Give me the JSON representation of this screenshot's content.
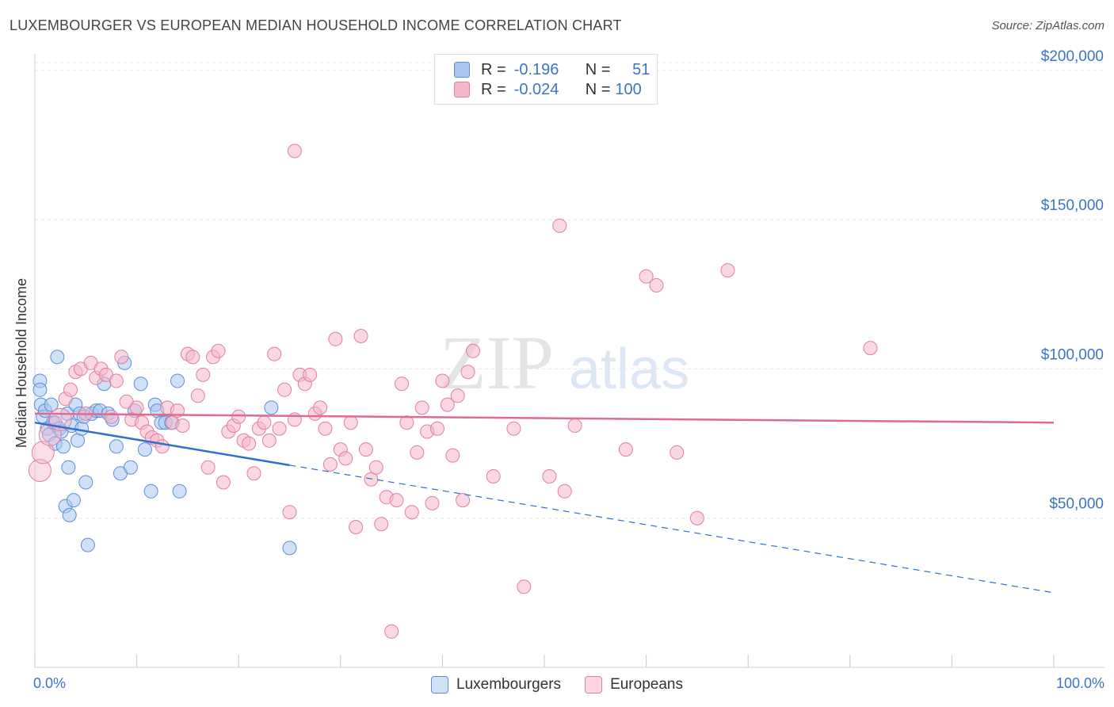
{
  "title": "LUXEMBOURGER VS EUROPEAN MEDIAN HOUSEHOLD INCOME CORRELATION CHART",
  "source": "Source: ZipAtlas.com",
  "watermark": {
    "zip": "ZIP",
    "atlas": "atlas"
  },
  "legend_top": {
    "rows": [
      {
        "r_label": "R =",
        "r_value": "-0.196",
        "n_label": "N =",
        "n_value": "51",
        "color": "#a9c6f0"
      },
      {
        "r_label": "R =",
        "r_value": "-0.024",
        "n_label": "N =",
        "n_value": "100",
        "color": "#f5b7cb"
      }
    ]
  },
  "x_axis": {
    "min_label": "0.0%",
    "max_label": "100.0%"
  },
  "chart_data": {
    "type": "scatter",
    "title": "LUXEMBOURGER VS EUROPEAN MEDIAN HOUSEHOLD INCOME CORRELATION CHART",
    "xlabel": "",
    "ylabel": "Median Household Income",
    "xlim": [
      0,
      100
    ],
    "ylim": [
      0,
      205000
    ],
    "y_ticks": [
      {
        "value": 50000,
        "label": "$50,000"
      },
      {
        "value": 100000,
        "label": "$100,000"
      },
      {
        "value": 150000,
        "label": "$150,000"
      },
      {
        "value": 200000,
        "label": "$200,000"
      }
    ],
    "series": [
      {
        "name": "Luxembourgers",
        "color": "#a9c6f0",
        "stroke": "#5a8fd8",
        "trend": {
          "x0": 0,
          "y0": 82000,
          "x_solid_end": 25,
          "x1": 100,
          "y1": 25000,
          "color": "#2f6fd0"
        },
        "points": [
          [
            0.5,
            96000
          ],
          [
            0.5,
            93000
          ],
          [
            0.6,
            88000
          ],
          [
            0.8,
            84000
          ],
          [
            1.0,
            86000
          ],
          [
            1.2,
            80000
          ],
          [
            1.4,
            78000
          ],
          [
            1.6,
            88000
          ],
          [
            1.8,
            82000
          ],
          [
            2.0,
            75000
          ],
          [
            2.0,
            82000
          ],
          [
            2.2,
            104000
          ],
          [
            2.4,
            80000
          ],
          [
            2.6,
            79000
          ],
          [
            2.8,
            74000
          ],
          [
            3.0,
            54000
          ],
          [
            3.2,
            85000
          ],
          [
            3.3,
            67000
          ],
          [
            3.4,
            51000
          ],
          [
            3.6,
            81000
          ],
          [
            3.8,
            56000
          ],
          [
            4.0,
            88000
          ],
          [
            4.2,
            76000
          ],
          [
            4.4,
            85000
          ],
          [
            4.6,
            80000
          ],
          [
            4.8,
            84000
          ],
          [
            5.0,
            62000
          ],
          [
            5.2,
            41000
          ],
          [
            5.6,
            85000
          ],
          [
            6.0,
            86000
          ],
          [
            6.4,
            86000
          ],
          [
            6.8,
            95000
          ],
          [
            7.2,
            85000
          ],
          [
            7.6,
            83000
          ],
          [
            8.0,
            74000
          ],
          [
            8.4,
            65000
          ],
          [
            8.8,
            102000
          ],
          [
            9.4,
            67000
          ],
          [
            9.8,
            86000
          ],
          [
            10.4,
            95000
          ],
          [
            10.8,
            73000
          ],
          [
            11.4,
            59000
          ],
          [
            11.8,
            88000
          ],
          [
            12.0,
            86000
          ],
          [
            12.4,
            82000
          ],
          [
            12.8,
            82000
          ],
          [
            13.4,
            82000
          ],
          [
            14.0,
            96000
          ],
          [
            14.2,
            59000
          ],
          [
            23.2,
            87000
          ],
          [
            25.0,
            40000
          ]
        ]
      },
      {
        "name": "Europeans",
        "color": "#f5b7cb",
        "stroke": "#e07fa0",
        "trend": {
          "x0": 0,
          "y0": 85000,
          "x1": 100,
          "y1": 82000,
          "color": "#e06a92"
        },
        "points": [
          [
            0.5,
            66000
          ],
          [
            0.8,
            72000
          ],
          [
            1.5,
            78000
          ],
          [
            2.5,
            83000
          ],
          [
            3.0,
            90000
          ],
          [
            3.5,
            93000
          ],
          [
            4.0,
            99000
          ],
          [
            4.5,
            100000
          ],
          [
            5.0,
            85000
          ],
          [
            5.5,
            102000
          ],
          [
            6.0,
            97000
          ],
          [
            6.5,
            100000
          ],
          [
            7.0,
            98000
          ],
          [
            7.5,
            84000
          ],
          [
            8.0,
            96000
          ],
          [
            8.5,
            104000
          ],
          [
            9.0,
            89000
          ],
          [
            9.5,
            83000
          ],
          [
            10.0,
            87000
          ],
          [
            10.5,
            82000
          ],
          [
            11.0,
            79000
          ],
          [
            11.5,
            77000
          ],
          [
            12.0,
            76000
          ],
          [
            12.5,
            74000
          ],
          [
            13.0,
            87000
          ],
          [
            13.5,
            82000
          ],
          [
            14.0,
            86000
          ],
          [
            14.5,
            81000
          ],
          [
            15.0,
            105000
          ],
          [
            15.5,
            104000
          ],
          [
            16.0,
            91000
          ],
          [
            16.5,
            98000
          ],
          [
            17.0,
            67000
          ],
          [
            17.5,
            104000
          ],
          [
            18.0,
            106000
          ],
          [
            18.5,
            62000
          ],
          [
            19.0,
            79000
          ],
          [
            19.5,
            81000
          ],
          [
            20.0,
            84000
          ],
          [
            20.5,
            76000
          ],
          [
            21.0,
            75000
          ],
          [
            21.5,
            65000
          ],
          [
            22.0,
            80000
          ],
          [
            22.5,
            82000
          ],
          [
            23.0,
            76000
          ],
          [
            23.5,
            105000
          ],
          [
            24.0,
            80000
          ],
          [
            24.5,
            93000
          ],
          [
            25.0,
            52000
          ],
          [
            25.5,
            83000
          ],
          [
            26.0,
            98000
          ],
          [
            26.5,
            95000
          ],
          [
            27.0,
            98000
          ],
          [
            27.5,
            85000
          ],
          [
            28.0,
            87000
          ],
          [
            28.5,
            80000
          ],
          [
            29.0,
            68000
          ],
          [
            29.5,
            110000
          ],
          [
            30.0,
            73000
          ],
          [
            30.5,
            70000
          ],
          [
            31.0,
            82000
          ],
          [
            31.5,
            47000
          ],
          [
            32.0,
            111000
          ],
          [
            32.5,
            73000
          ],
          [
            33.0,
            63000
          ],
          [
            33.5,
            67000
          ],
          [
            34.0,
            48000
          ],
          [
            34.5,
            57000
          ],
          [
            35.0,
            12000
          ],
          [
            35.5,
            56000
          ],
          [
            36.0,
            95000
          ],
          [
            36.5,
            82000
          ],
          [
            37.0,
            52000
          ],
          [
            37.5,
            72000
          ],
          [
            38.0,
            87000
          ],
          [
            38.5,
            79000
          ],
          [
            39.0,
            55000
          ],
          [
            39.5,
            80000
          ],
          [
            40.0,
            96000
          ],
          [
            40.5,
            88000
          ],
          [
            41.0,
            71000
          ],
          [
            41.5,
            91000
          ],
          [
            42.0,
            56000
          ],
          [
            42.5,
            99000
          ],
          [
            43.0,
            106000
          ],
          [
            45.0,
            64000
          ],
          [
            47.0,
            80000
          ],
          [
            48.0,
            27000
          ],
          [
            50.5,
            64000
          ],
          [
            52.0,
            59000
          ],
          [
            53.0,
            81000
          ],
          [
            58.0,
            73000
          ],
          [
            60.0,
            131000
          ],
          [
            61.0,
            128000
          ],
          [
            63.0,
            72000
          ],
          [
            65.0,
            50000
          ],
          [
            68.0,
            133000
          ],
          [
            82.0,
            107000
          ],
          [
            25.5,
            173000
          ],
          [
            51.5,
            148000
          ]
        ]
      }
    ]
  }
}
